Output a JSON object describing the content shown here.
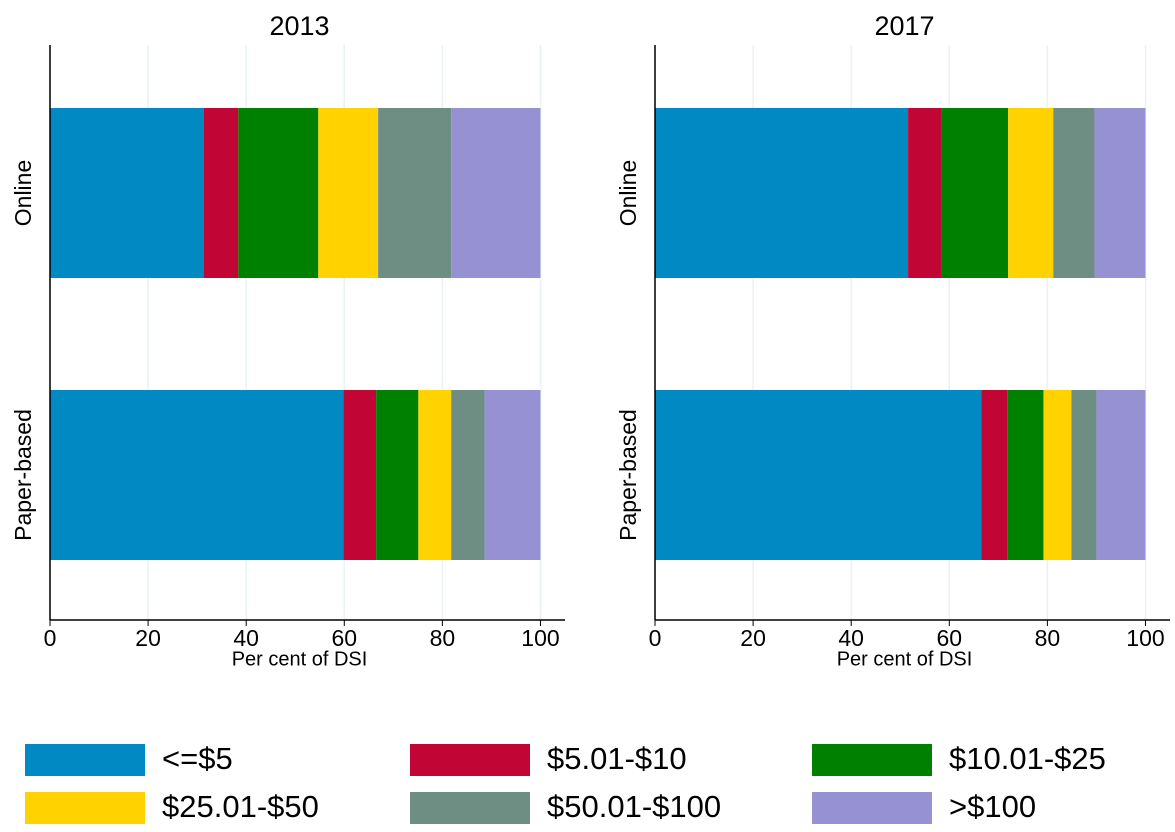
{
  "chart_data": [
    {
      "type": "bar",
      "title": "2013",
      "categories": [
        "Online",
        "Paper-based"
      ],
      "xlabel": "Per cent of DSI",
      "xlim": [
        0,
        105
      ],
      "xticks": [
        0,
        20,
        40,
        60,
        80,
        100
      ],
      "grid": true,
      "series": [
        {
          "name": "<=$5",
          "color": "#0089c2",
          "values": [
            31.4,
            59.8
          ]
        },
        {
          "name": "$5.01-$10",
          "color": "#c10534",
          "values": [
            7.0,
            6.7
          ]
        },
        {
          "name": "$10.01-$25",
          "color": "#008000",
          "values": [
            16.3,
            8.6
          ]
        },
        {
          "name": "$25.01-$50",
          "color": "#ffd200",
          "values": [
            12.2,
            6.7
          ]
        },
        {
          "name": "$50.01-$100",
          "color": "#6e8e84",
          "values": [
            14.9,
            6.8
          ]
        },
        {
          "name": ">$100",
          "color": "#9591d2",
          "values": [
            18.2,
            11.4
          ]
        }
      ]
    },
    {
      "type": "bar",
      "title": "2017",
      "categories": [
        "Online",
        "Paper-based"
      ],
      "xlabel": "Per cent of DSI",
      "xlim": [
        0,
        105
      ],
      "xticks": [
        0,
        20,
        40,
        60,
        80,
        100
      ],
      "grid": true,
      "series": [
        {
          "values": [
            51.6,
            66.5
          ]
        },
        {
          "values": [
            6.8,
            5.3
          ]
        },
        {
          "values": [
            13.6,
            7.4
          ]
        },
        {
          "values": [
            9.2,
            5.7
          ]
        },
        {
          "values": [
            8.4,
            5.1
          ]
        },
        {
          "values": [
            10.4,
            10.0
          ]
        }
      ]
    }
  ]
}
